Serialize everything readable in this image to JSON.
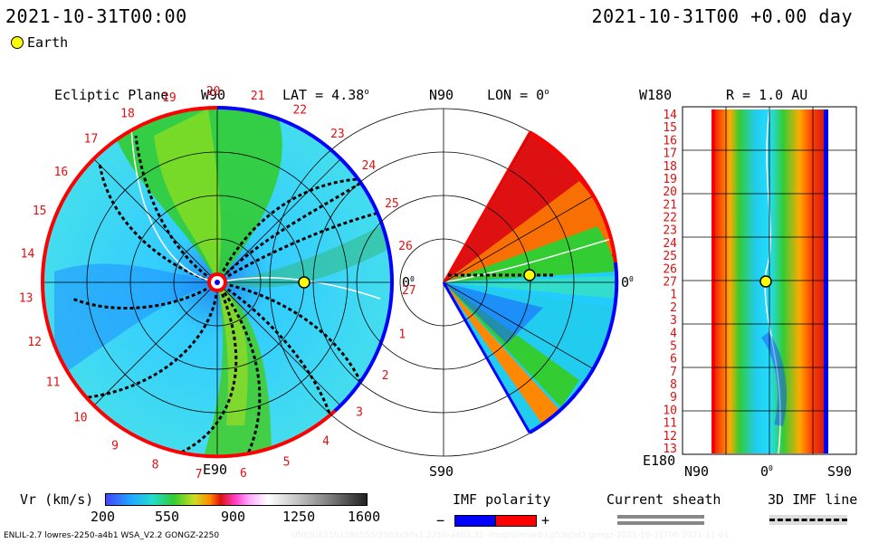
{
  "header": {
    "left_time": "2021-10-31T00:00",
    "right_time": "2021-10-31T00 +0.00 day",
    "legend_earth": "Earth"
  },
  "colors": {
    "earth": "#ffff00",
    "imf_negative": "#0000ff",
    "imf_positive": "#ff0000",
    "sheath": "#888888"
  },
  "chart_data": [
    {
      "type": "heatmap",
      "view": "polar",
      "panel": "ecliptic",
      "title": "Ecliptic Plane",
      "top_label": "W90",
      "lat_label": "LAT = 4.38",
      "lat_sup": "o",
      "bottom_label": "E90",
      "right_label": "0",
      "right_sup": "0",
      "carrington_rotation_labels": [
        "19",
        "20",
        "21",
        "22",
        "23",
        "24",
        "25",
        "26",
        "27",
        "1",
        "2",
        "3",
        "4",
        "5",
        "6",
        "7",
        "8",
        "9",
        "10",
        "11",
        "12",
        "13",
        "14",
        "15",
        "16",
        "17",
        "18"
      ],
      "earth_angle_deg": 0
    },
    {
      "type": "heatmap",
      "view": "wedge",
      "panel": "meridional",
      "top_label": "N90",
      "lon_label": "LON = 0",
      "lon_sup": "o",
      "bottom_label": "S90",
      "right_label": "0",
      "right_sup": "0"
    },
    {
      "type": "heatmap",
      "view": "rectangular",
      "panel": "radial_surface",
      "title": "R = 1.0 AU",
      "top_label": "W180",
      "bottom_label": "E180",
      "x_labels": [
        "N90",
        "0",
        "S90"
      ],
      "x_zero_sup": "0",
      "y_labels": [
        "14",
        "15",
        "16",
        "17",
        "18",
        "19",
        "20",
        "21",
        "22",
        "23",
        "24",
        "25",
        "26",
        "27",
        "1",
        "2",
        "3",
        "4",
        "5",
        "6",
        "7",
        "8",
        "9",
        "10",
        "11",
        "12",
        "13"
      ]
    }
  ],
  "colorbar": {
    "label": "Vr (km/s)",
    "ticks": [
      "200",
      "550",
      "900",
      "1250",
      "1600"
    ],
    "min": 200,
    "max": 1600
  },
  "imf_legend": {
    "title": "IMF polarity",
    "minus": "−",
    "plus": "+"
  },
  "sheath_legend": {
    "title": "Current sheath"
  },
  "imf_line_legend": {
    "title": "3D IMF line"
  },
  "footer": {
    "left": "ENLIL-2.7 lowres-2250-a4b1 WSA_V2.2 GONGZ-2250",
    "right": "UNIQUE110118b555/2563x90x1.2250-a4b1.32--rnoptumnied-l.g53q5d2.gongz-2021-10-31T00  2021-11-01"
  }
}
